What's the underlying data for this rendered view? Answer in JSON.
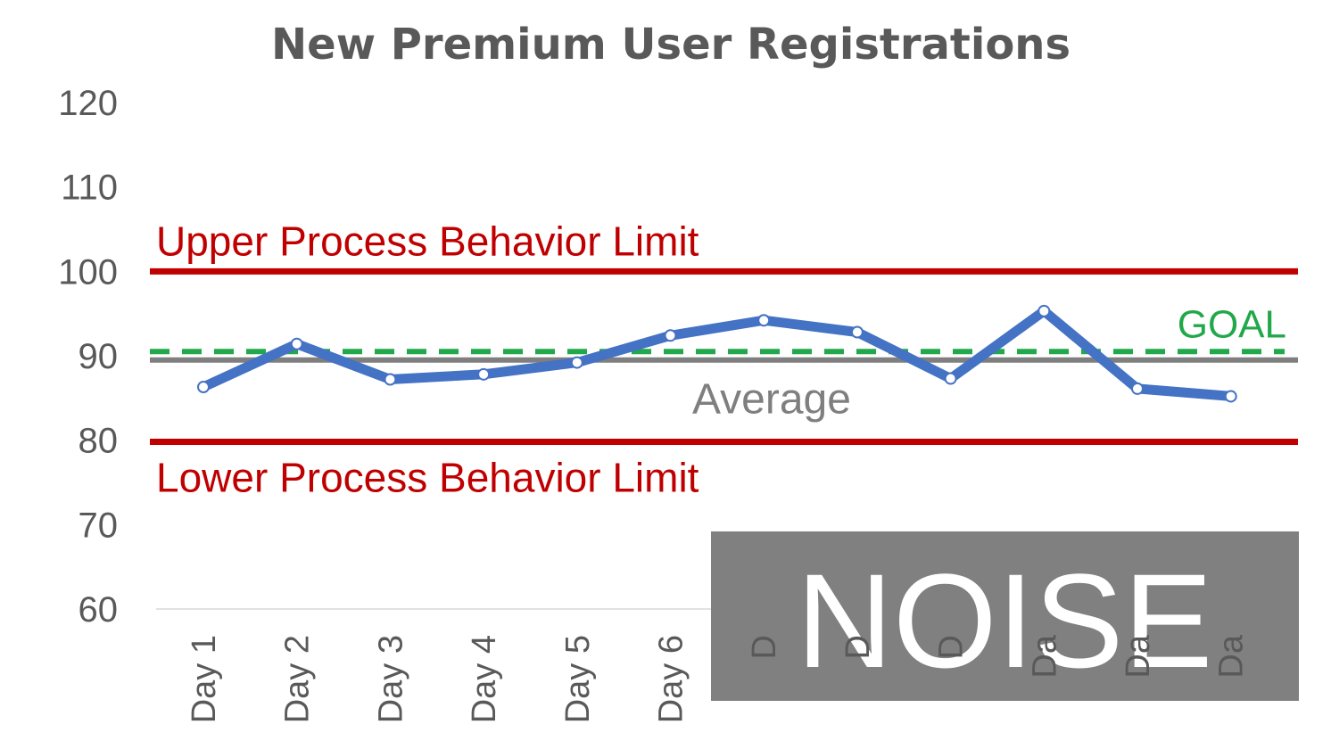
{
  "chart_data": {
    "type": "line",
    "title": "New Premium User Registrations",
    "xlabel": "",
    "ylabel": "",
    "ylim": [
      60,
      120
    ],
    "yticks": [
      60,
      70,
      80,
      90,
      100,
      110,
      120
    ],
    "categories": [
      "Day 1",
      "Day 2",
      "Day 3",
      "Day 4",
      "Day 5",
      "Day 6",
      "D",
      "D",
      "D",
      "Da",
      "Da",
      "Da"
    ],
    "series": [
      {
        "values": [
          86.3,
          91.4,
          87.2,
          87.8,
          89.2,
          92.4,
          94.2,
          92.8,
          87.3,
          95.3,
          86.1,
          85.2
        ]
      }
    ],
    "reference_lines": {
      "upper_limit": {
        "label": "Upper Process Behavior Limit",
        "value": 100
      },
      "lower_limit": {
        "label": "Lower Process Behavior Limit",
        "value": 79.8
      },
      "average": {
        "label": "Average",
        "value": 89.5
      },
      "goal": {
        "label": "GOAL",
        "value": 90.5
      }
    },
    "annotation": "NOISE",
    "grid": false,
    "colors": {
      "series": "#4472c4",
      "limits": "#c00000",
      "average": "#7f7f7f",
      "goal": "#21a84a",
      "title": "#595959",
      "axis_text": "#595959",
      "noise_box": "#808080",
      "noise_text": "#ffffff"
    }
  }
}
